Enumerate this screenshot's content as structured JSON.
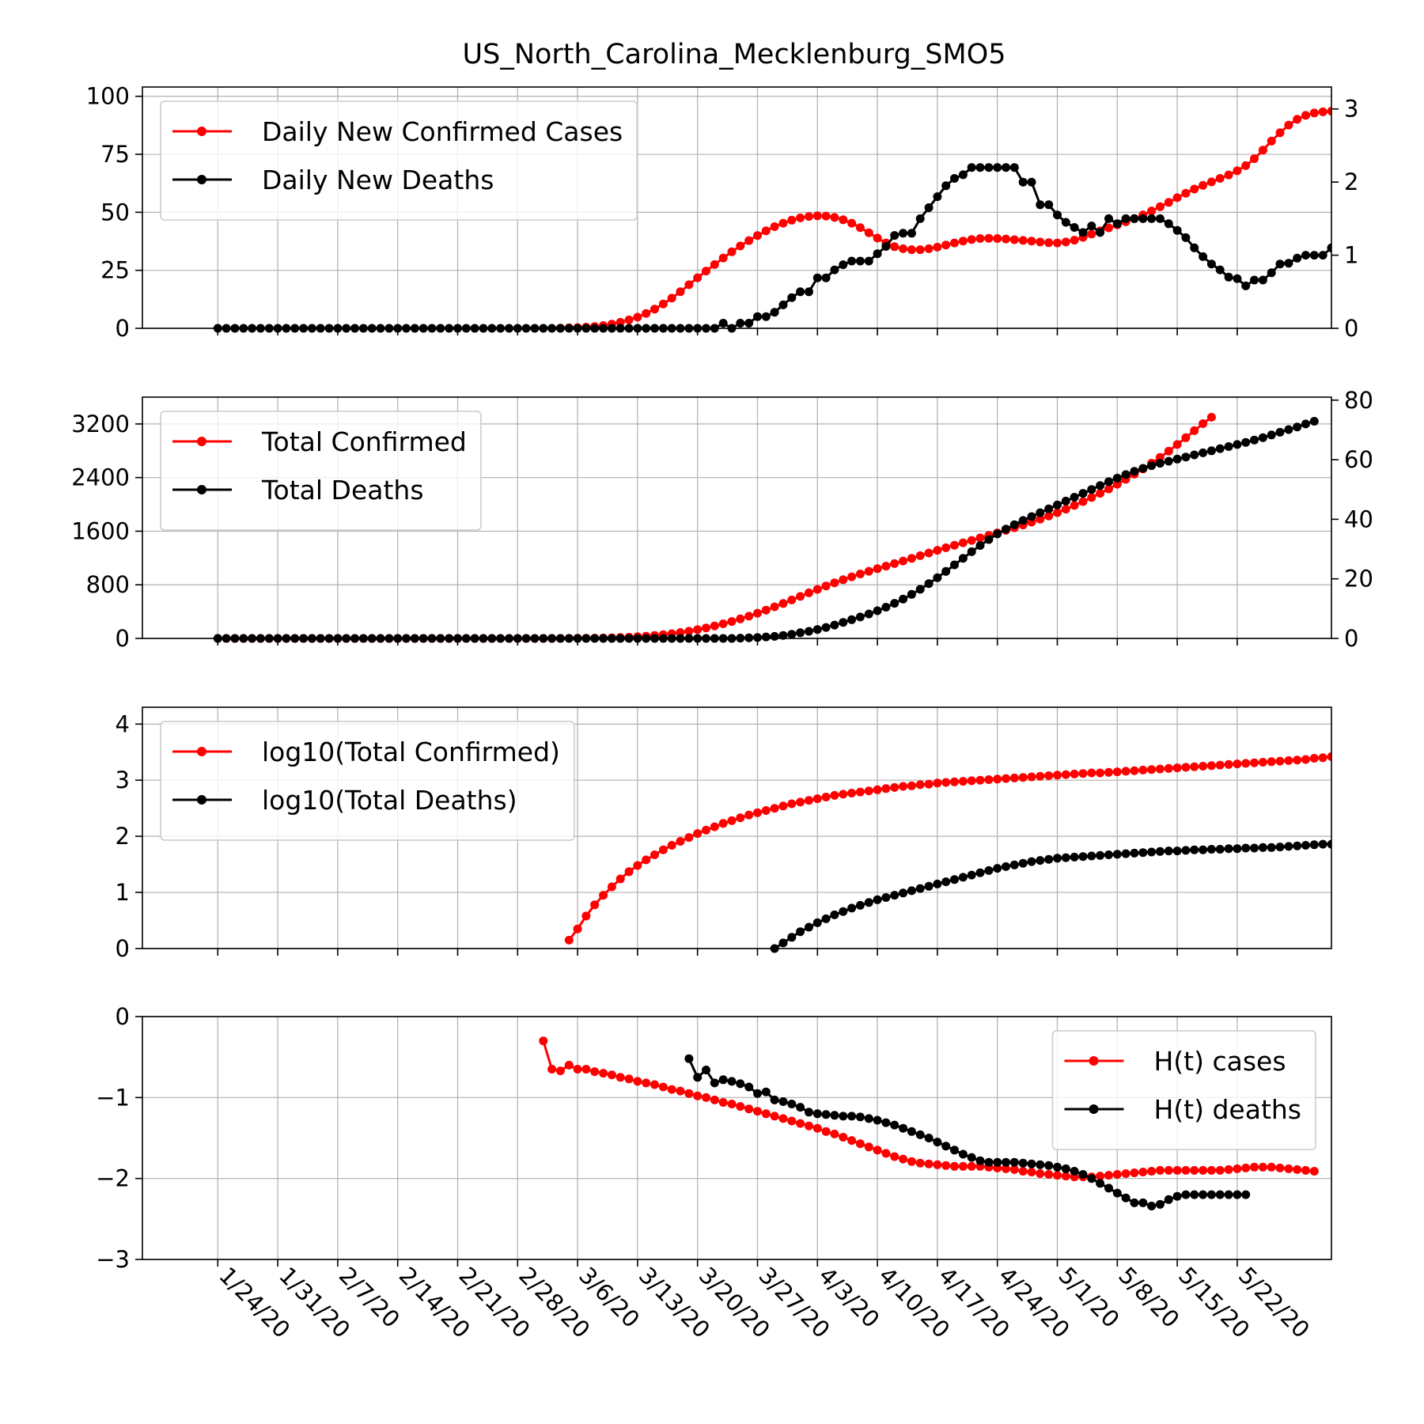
{
  "title": "US_North_Carolina_Mecklenburg_SMO5",
  "colors": {
    "cases": "#ff0000",
    "deaths": "#000000",
    "grid": "#b0b0b0"
  },
  "x_tick_labels": [
    "1/24/20",
    "1/31/20",
    "2/7/20",
    "2/14/20",
    "2/21/20",
    "2/28/20",
    "3/6/20",
    "3/13/20",
    "3/20/20",
    "3/27/20",
    "4/3/20",
    "4/10/20",
    "4/17/20",
    "4/24/20",
    "5/1/20",
    "5/8/20",
    "5/15/20",
    "5/22/20"
  ],
  "chart_data": [
    {
      "type": "line",
      "grid": true,
      "legend": "upper left",
      "x_range": [
        "1/24/20",
        "5/25/20"
      ],
      "series": [
        {
          "name": "Daily New Confirmed Cases",
          "color": "#ff0000",
          "axis": "left",
          "start": "3/4/20",
          "values": [
            0.1,
            0.2,
            0.3,
            0.5,
            0.8,
            1.2,
            1.8,
            2.6,
            3.6,
            4.8,
            6.4,
            8.3,
            10.5,
            13.0,
            15.8,
            18.8,
            21.8,
            24.7,
            27.5,
            30.3,
            33.0,
            35.5,
            37.8,
            40.0,
            42.0,
            43.8,
            45.3,
            46.6,
            47.6,
            48.2,
            48.5,
            48.4,
            47.8,
            46.8,
            45.3,
            43.4,
            41.2,
            38.9,
            36.8,
            35.2,
            34.3,
            33.9,
            33.9,
            34.3,
            35.0,
            35.9,
            36.8,
            37.6,
            38.3,
            38.7,
            38.8,
            38.7,
            38.5,
            38.2,
            37.9,
            37.6,
            37.2,
            36.9,
            36.8,
            37.2,
            38.0,
            39.2,
            40.6,
            42.0,
            43.3,
            44.6,
            45.9,
            47.3,
            48.9,
            50.6,
            52.4,
            54.3,
            56.3,
            58.2,
            60.0,
            61.6,
            63.1,
            64.6,
            66.1,
            67.9,
            70.1,
            73.1,
            76.8,
            80.7,
            84.3,
            87.6,
            90.1,
            91.8,
            92.8,
            93.3,
            93.6,
            93.8,
            94.0
          ]
        },
        {
          "name": "Daily New Deaths",
          "color": "#000000",
          "axis": "right",
          "start": "1/24/20",
          "values_note": "",
          "values": [
            0,
            0,
            0,
            0,
            0,
            0,
            0,
            0,
            0,
            0,
            0,
            0,
            0,
            0,
            0,
            0,
            0,
            0,
            0,
            0,
            0,
            0,
            0,
            0,
            0,
            0,
            0,
            0,
            0,
            0,
            0,
            0,
            0,
            0,
            0,
            0,
            0,
            0,
            0,
            0,
            0,
            0,
            0,
            0,
            0,
            0,
            0,
            0,
            0,
            0,
            0,
            0,
            0,
            0,
            0,
            0,
            0,
            0,
            0,
            0.07,
            0,
            0.07,
            0.07,
            0.16,
            0.16,
            0.22,
            0.32,
            0.42,
            0.5,
            0.5,
            0.69,
            0.69,
            0.8,
            0.87,
            0.92,
            0.92,
            0.92,
            1.02,
            1.12,
            1.27,
            1.3,
            1.3,
            1.5,
            1.65,
            1.8,
            1.95,
            2.05,
            2.1,
            2.2,
            2.2,
            2.2,
            2.2,
            2.2,
            2.2,
            2.0,
            2.0,
            1.69,
            1.69,
            1.55,
            1.45,
            1.38,
            1.31,
            1.4,
            1.31,
            1.5,
            1.43,
            1.5,
            1.5,
            1.5,
            1.5,
            1.5,
            1.43,
            1.34,
            1.24,
            1.1,
            0.98,
            0.88,
            0.8,
            0.7,
            0.68,
            0.58,
            0.66,
            0.66,
            0.76,
            0.88,
            0.89,
            0.96,
            1.0,
            1.0,
            1.0,
            1.1,
            1.0,
            1.1,
            1.0
          ],
          "values_start": "1/24/20"
        }
      ],
      "ylim_left": [
        0,
        104
      ],
      "yticks_left": [
        0,
        25,
        50,
        75,
        100
      ],
      "ylim_right": [
        0,
        3.3
      ],
      "yticks_right": [
        0,
        1,
        2,
        3
      ]
    },
    {
      "type": "line",
      "grid": true,
      "legend": "upper left",
      "series": [
        {
          "name": "Total Confirmed",
          "color": "#ff0000",
          "axis": "left",
          "start": "1/24/20",
          "values": [
            0,
            0,
            0,
            0,
            0,
            0,
            0,
            0,
            0,
            0,
            0,
            0,
            0,
            0,
            0,
            0,
            0,
            0,
            0,
            0,
            0,
            0,
            0,
            0,
            0,
            0,
            0,
            0,
            0,
            0,
            0,
            0,
            0,
            0,
            0,
            0,
            0,
            0,
            0,
            0,
            0,
            1,
            2,
            3,
            5,
            7,
            10,
            14,
            19,
            26,
            34,
            45,
            57,
            71,
            88,
            108,
            131,
            157,
            186,
            218,
            253,
            291,
            332,
            376,
            423,
            472,
            522,
            574,
            627,
            680,
            732,
            782,
            830,
            876,
            920,
            962,
            1002,
            1041,
            1079,
            1117,
            1156,
            1195,
            1235,
            1275,
            1315,
            1353,
            1390,
            1427,
            1463,
            1500,
            1537,
            1574,
            1612,
            1651,
            1692,
            1735,
            1780,
            1827,
            1877,
            1929,
            1984,
            2042,
            2102,
            2165,
            2231,
            2301,
            2374,
            2450,
            2530,
            2614,
            2702,
            2795,
            2893,
            2995,
            3100,
            3205,
            3300
          ]
        },
        {
          "name": "Total Deaths",
          "color": "#000000",
          "axis": "right",
          "start": "1/24/20",
          "values": [
            0,
            0,
            0,
            0,
            0,
            0,
            0,
            0,
            0,
            0,
            0,
            0,
            0,
            0,
            0,
            0,
            0,
            0,
            0,
            0,
            0,
            0,
            0,
            0,
            0,
            0,
            0,
            0,
            0,
            0,
            0,
            0,
            0,
            0,
            0,
            0,
            0,
            0,
            0,
            0,
            0,
            0,
            0,
            0,
            0,
            0,
            0,
            0,
            0,
            0,
            0,
            0,
            0,
            0,
            0,
            0,
            0,
            0,
            0,
            0,
            0,
            0.1,
            0.2,
            0.3,
            0.5,
            0.7,
            1,
            1.4,
            1.9,
            2.4,
            3,
            3.7,
            4.5,
            5.4,
            6.3,
            7.2,
            8.2,
            9.3,
            10.5,
            11.8,
            13.2,
            14.8,
            16.5,
            18.4,
            20.4,
            22.5,
            24.7,
            26.9,
            29.1,
            31.2,
            33.2,
            35.1,
            36.7,
            38.2,
            39.6,
            40.9,
            42.2,
            43.5,
            44.8,
            46.1,
            47.4,
            48.7,
            50,
            51.3,
            52.6,
            53.8,
            55,
            56.1,
            57.1,
            58,
            58.8,
            59.5,
            60.2,
            60.9,
            61.6,
            62.3,
            63,
            63.7,
            64.4,
            65.1,
            65.8,
            66.6,
            67.4,
            68.3,
            69.2,
            70.1,
            71,
            72,
            72.9
          ]
        }
      ],
      "ylim_left": [
        0,
        3600
      ],
      "yticks_left": [
        0,
        800,
        1600,
        2400,
        3200
      ],
      "ylim_right": [
        0,
        81
      ],
      "yticks_right": [
        0,
        20,
        40,
        60,
        80
      ]
    },
    {
      "type": "line",
      "grid": true,
      "legend": "upper left",
      "series": [
        {
          "name": "log10(Total Confirmed)",
          "color": "#ff0000",
          "start": "3/5/20",
          "values": [
            0.15,
            0.35,
            0.58,
            0.78,
            0.95,
            1.1,
            1.24,
            1.37,
            1.48,
            1.58,
            1.67,
            1.76,
            1.84,
            1.91,
            1.98,
            2.05,
            2.11,
            2.17,
            2.23,
            2.28,
            2.33,
            2.38,
            2.42,
            2.46,
            2.5,
            2.54,
            2.58,
            2.61,
            2.64,
            2.67,
            2.7,
            2.73,
            2.75,
            2.77,
            2.79,
            2.81,
            2.83,
            2.85,
            2.87,
            2.89,
            2.9,
            2.92,
            2.93,
            2.95,
            2.96,
            2.97,
            2.98,
            2.99,
            3.0,
            3.01,
            3.02,
            3.03,
            3.04,
            3.05,
            3.06,
            3.07,
            3.08,
            3.09,
            3.1,
            3.11,
            3.12,
            3.13,
            3.13,
            3.14,
            3.15,
            3.16,
            3.17,
            3.18,
            3.19,
            3.2,
            3.21,
            3.22,
            3.23,
            3.24,
            3.25,
            3.26,
            3.27,
            3.28,
            3.29,
            3.3,
            3.31,
            3.32,
            3.33,
            3.34,
            3.35,
            3.36,
            3.37,
            3.39,
            3.4,
            3.42,
            3.44,
            3.46,
            3.48,
            3.5,
            3.52
          ]
        },
        {
          "name": "log10(Total Deaths)",
          "color": "#000000",
          "start": "3/29/20",
          "values": [
            0.0,
            0.1,
            0.2,
            0.3,
            0.38,
            0.46,
            0.53,
            0.6,
            0.66,
            0.72,
            0.77,
            0.82,
            0.87,
            0.91,
            0.95,
            0.99,
            1.03,
            1.07,
            1.11,
            1.15,
            1.19,
            1.23,
            1.27,
            1.31,
            1.35,
            1.39,
            1.43,
            1.46,
            1.49,
            1.52,
            1.55,
            1.57,
            1.59,
            1.61,
            1.62,
            1.63,
            1.64,
            1.65,
            1.66,
            1.67,
            1.68,
            1.69,
            1.7,
            1.71,
            1.72,
            1.73,
            1.74,
            1.74,
            1.75,
            1.76,
            1.76,
            1.77,
            1.77,
            1.78,
            1.78,
            1.79,
            1.79,
            1.8,
            1.8,
            1.81,
            1.82,
            1.83,
            1.84,
            1.85,
            1.86,
            1.86,
            1.87
          ]
        }
      ],
      "ylim": [
        0,
        4.3
      ],
      "yticks": [
        0,
        1,
        2,
        3,
        4
      ]
    },
    {
      "type": "line",
      "grid": true,
      "legend": "upper right",
      "series": [
        {
          "name": "H(t) cases",
          "color": "#ff0000",
          "start": "3/2/20",
          "values": [
            -0.3,
            -0.65,
            -0.67,
            -0.6,
            -0.65,
            -0.65,
            -0.68,
            -0.7,
            -0.72,
            -0.75,
            -0.77,
            -0.8,
            -0.82,
            -0.84,
            -0.87,
            -0.9,
            -0.92,
            -0.95,
            -0.98,
            -1.0,
            -1.03,
            -1.06,
            -1.08,
            -1.11,
            -1.14,
            -1.17,
            -1.2,
            -1.23,
            -1.26,
            -1.29,
            -1.32,
            -1.35,
            -1.38,
            -1.42,
            -1.45,
            -1.49,
            -1.53,
            -1.57,
            -1.61,
            -1.65,
            -1.69,
            -1.73,
            -1.76,
            -1.79,
            -1.81,
            -1.82,
            -1.83,
            -1.84,
            -1.85,
            -1.85,
            -1.85,
            -1.85,
            -1.86,
            -1.87,
            -1.88,
            -1.89,
            -1.91,
            -1.92,
            -1.94,
            -1.95,
            -1.96,
            -1.97,
            -1.98,
            -1.98,
            -1.98,
            -1.97,
            -1.96,
            -1.95,
            -1.94,
            -1.93,
            -1.92,
            -1.91,
            -1.9,
            -1.9,
            -1.9,
            -1.9,
            -1.9,
            -1.9,
            -1.9,
            -1.9,
            -1.89,
            -1.88,
            -1.87,
            -1.86,
            -1.86,
            -1.86,
            -1.87,
            -1.88,
            -1.89,
            -1.9,
            -1.91
          ]
        },
        {
          "name": "H(t) deaths",
          "color": "#000000",
          "start": "3/19/20",
          "values": [
            -0.52,
            -0.75,
            -0.66,
            -0.82,
            -0.78,
            -0.8,
            -0.83,
            -0.87,
            -0.95,
            -0.93,
            -1.03,
            -1.05,
            -1.08,
            -1.12,
            -1.18,
            -1.2,
            -1.21,
            -1.22,
            -1.23,
            -1.23,
            -1.24,
            -1.26,
            -1.28,
            -1.31,
            -1.34,
            -1.38,
            -1.42,
            -1.46,
            -1.5,
            -1.55,
            -1.6,
            -1.65,
            -1.7,
            -1.74,
            -1.78,
            -1.8,
            -1.8,
            -1.8,
            -1.8,
            -1.81,
            -1.82,
            -1.83,
            -1.84,
            -1.86,
            -1.88,
            -1.91,
            -1.95,
            -2.0,
            -2.06,
            -2.12,
            -2.18,
            -2.24,
            -2.3,
            -2.3,
            -2.34,
            -2.32,
            -2.26,
            -2.22,
            -2.2,
            -2.2,
            -2.2,
            -2.2,
            -2.2,
            -2.2,
            -2.2,
            -2.2
          ]
        }
      ],
      "ylim": [
        -3,
        0
      ],
      "yticks": [
        -3,
        -2,
        -1,
        0
      ]
    }
  ]
}
